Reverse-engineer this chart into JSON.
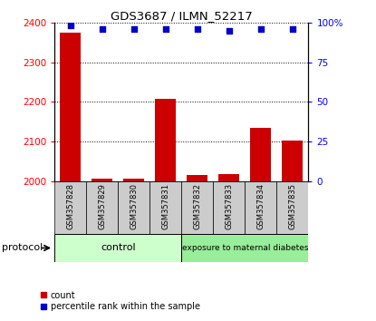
{
  "title": "GDS3687 / ILMN_52217",
  "samples": [
    "GSM357828",
    "GSM357829",
    "GSM357830",
    "GSM357831",
    "GSM357832",
    "GSM357833",
    "GSM357834",
    "GSM357835"
  ],
  "counts": [
    2375,
    2007,
    2006,
    2207,
    2017,
    2018,
    2135,
    2103
  ],
  "percentile_ranks": [
    98,
    96,
    96,
    96,
    96,
    95,
    96,
    96
  ],
  "ylim_left": [
    2000,
    2400
  ],
  "ylim_right": [
    0,
    100
  ],
  "yticks_left": [
    2000,
    2100,
    2200,
    2300,
    2400
  ],
  "yticks_right": [
    0,
    25,
    50,
    75,
    100
  ],
  "bar_color": "#cc0000",
  "scatter_color": "#0000cc",
  "grid_color": "#000000",
  "control_color": "#ccffcc",
  "exposure_color": "#99ee99",
  "sample_bg_color": "#cccccc",
  "protocol_label": "protocol",
  "legend_count_label": "count",
  "legend_percentile_label": "percentile rank within the sample"
}
